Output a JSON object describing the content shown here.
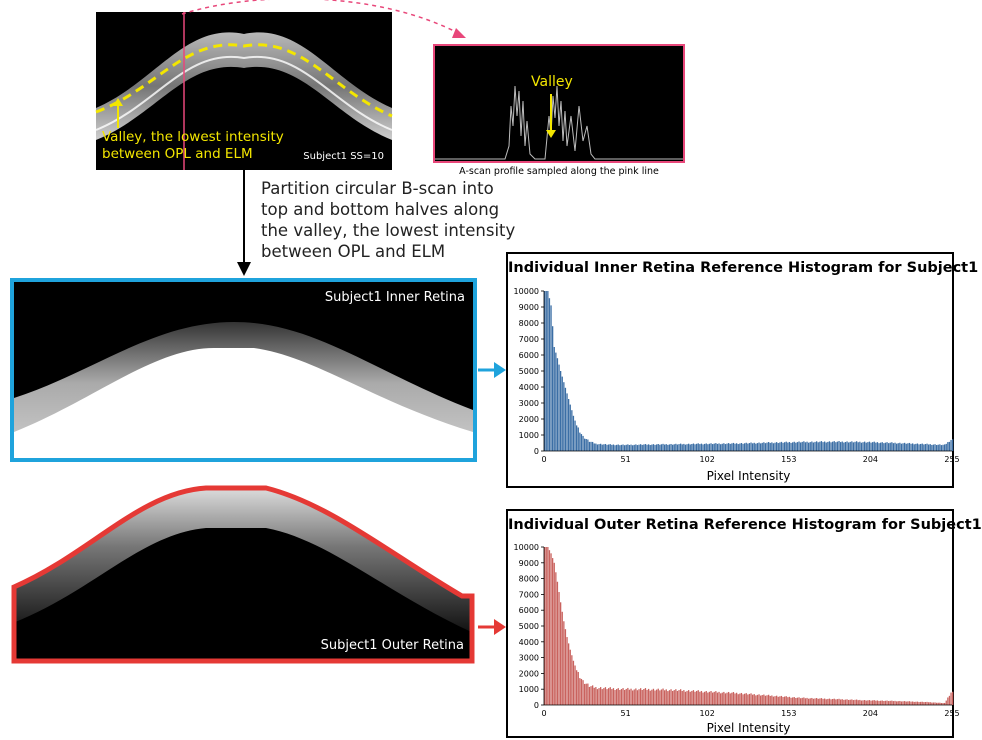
{
  "top_bscan": {
    "valley_annotation_line1": "Valley, the lowest intensity",
    "valley_annotation_line2": "between OPL and ELM",
    "subject_ss": "Subject1 SS=10"
  },
  "ascan": {
    "valley_label": "Valley",
    "caption": "A-scan profile sampled along the pink line"
  },
  "step": {
    "lines": [
      "Partition circular B-scan into",
      "top and bottom halves along",
      "the valley, the lowest intensity",
      "between OPL and ELM"
    ]
  },
  "inner_panel": {
    "label": "Subject1 Inner Retina"
  },
  "outer_panel": {
    "label": "Subject1 Outer Retina"
  },
  "colors": {
    "pink": "#e8477a",
    "blue_border": "#1fa3dc",
    "red_border": "#e53935",
    "inner_bar": "#3b6ea5",
    "outer_bar": "#c9625e",
    "annotation_yellow": "#f3e600"
  },
  "chart_data": [
    {
      "type": "bar",
      "title": "Individual Inner Retina Reference Histogram for Subject1",
      "xlabel": "Pixel Intensity",
      "ylabel": "",
      "ylim": [
        0,
        10000
      ],
      "yticks": [
        "0",
        "1000",
        "2000",
        "3000",
        "4000",
        "5000",
        "6000",
        "7000",
        "8000",
        "9000",
        "10000"
      ],
      "xticks": [
        "0",
        "51",
        "102",
        "153",
        "204",
        "255"
      ],
      "xtick_values": [
        0,
        51,
        102,
        153,
        204,
        255
      ],
      "x": [
        0,
        2,
        4,
        6,
        8,
        10,
        12,
        14,
        16,
        18,
        20,
        24,
        28,
        32,
        40,
        50,
        60,
        80,
        100,
        120,
        140,
        160,
        180,
        200,
        220,
        240,
        250,
        254
      ],
      "values": [
        10000,
        10000,
        9100,
        6500,
        5800,
        5000,
        4300,
        3600,
        2900,
        2200,
        1600,
        900,
        600,
        450,
        400,
        380,
        400,
        420,
        450,
        470,
        520,
        560,
        580,
        560,
        500,
        420,
        380,
        700
      ]
    },
    {
      "type": "bar",
      "title": "Individual Outer Retina Reference Histogram for Subject1",
      "xlabel": "Pixel Intensity",
      "ylabel": "",
      "ylim": [
        0,
        10000
      ],
      "yticks": [
        "0",
        "1000",
        "2000",
        "3000",
        "4000",
        "5000",
        "6000",
        "7000",
        "8000",
        "9000",
        "10000"
      ],
      "xticks": [
        "0",
        "51",
        "102",
        "153",
        "204",
        "255"
      ],
      "xtick_values": [
        0,
        51,
        102,
        153,
        204,
        255
      ],
      "x": [
        0,
        2,
        4,
        6,
        8,
        10,
        12,
        14,
        16,
        18,
        20,
        24,
        28,
        32,
        40,
        50,
        60,
        80,
        100,
        120,
        140,
        160,
        180,
        200,
        220,
        240,
        250,
        254
      ],
      "values": [
        10000,
        10000,
        9600,
        9000,
        7800,
        6500,
        5300,
        4300,
        3500,
        2800,
        2200,
        1500,
        1200,
        1100,
        1050,
        1000,
        1000,
        950,
        850,
        750,
        600,
        450,
        380,
        300,
        250,
        180,
        120,
        800
      ]
    }
  ]
}
